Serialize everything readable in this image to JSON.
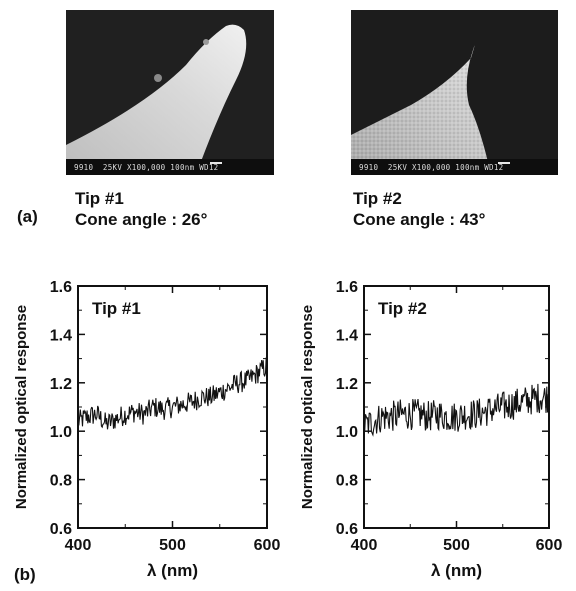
{
  "figure": {
    "panel_a_label": "(a)",
    "panel_b_label": "(b)",
    "tips": [
      {
        "name": "Tip #1",
        "cone_label": "Cone angle : 26°",
        "sem_meta": "9910  25KV X100,000 100nm WD12",
        "sem_meta_scale": "100nm"
      },
      {
        "name": "Tip #2",
        "cone_label": "Cone angle : 43°",
        "sem_meta": "9910  25KV X100,000 100nm WD12",
        "sem_meta_scale": "100nm"
      }
    ]
  },
  "colors": {
    "line": "#111111",
    "sem_bg": "#1a1a1a",
    "sem_tip": "#cfcfcf"
  },
  "chart_data": [
    {
      "type": "line",
      "annotation": "Tip #1",
      "xlabel": "λ (nm)",
      "ylabel": "Normalized optical response",
      "xlim": [
        400,
        600
      ],
      "ylim": [
        0.6,
        1.6
      ],
      "xticks": [
        400,
        500,
        600
      ],
      "yticks": [
        0.6,
        0.8,
        1.0,
        1.2,
        1.4,
        1.6
      ],
      "grid": false,
      "x": [
        400,
        410,
        420,
        430,
        440,
        450,
        460,
        470,
        480,
        490,
        500,
        510,
        520,
        530,
        540,
        550,
        560,
        570,
        580,
        590,
        600
      ],
      "series": [
        {
          "values": [
            1.04,
            1.06,
            1.07,
            1.03,
            1.05,
            1.07,
            1.08,
            1.07,
            1.1,
            1.09,
            1.1,
            1.11,
            1.12,
            1.14,
            1.14,
            1.16,
            1.18,
            1.2,
            1.21,
            1.24,
            1.27
          ]
        }
      ]
    },
    {
      "type": "line",
      "annotation": "Tip #2",
      "xlabel": "λ (nm)",
      "ylabel": "Normalized optical response",
      "xlim": [
        400,
        600
      ],
      "ylim": [
        0.6,
        1.6
      ],
      "xticks": [
        400,
        500,
        600
      ],
      "yticks": [
        0.6,
        0.8,
        1.0,
        1.2,
        1.4,
        1.6
      ],
      "grid": false,
      "x": [
        400,
        410,
        420,
        430,
        440,
        450,
        460,
        470,
        480,
        490,
        500,
        510,
        520,
        530,
        540,
        550,
        560,
        570,
        580,
        590,
        600
      ],
      "series": [
        {
          "values": [
            1.02,
            1.04,
            1.06,
            1.06,
            1.07,
            1.07,
            1.07,
            1.06,
            1.07,
            1.06,
            1.06,
            1.07,
            1.07,
            1.08,
            1.09,
            1.1,
            1.11,
            1.12,
            1.13,
            1.14,
            1.14
          ]
        }
      ]
    }
  ]
}
